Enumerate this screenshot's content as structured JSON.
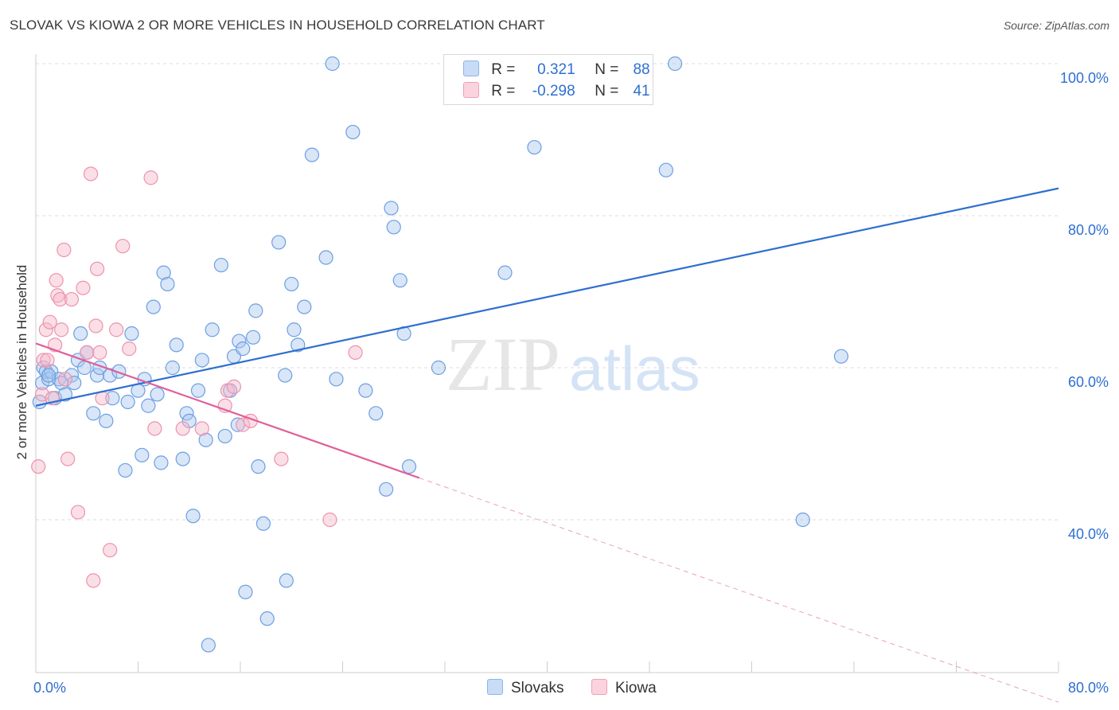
{
  "title": "SLOVAK VS KIOWA 2 OR MORE VEHICLES IN HOUSEHOLD CORRELATION CHART",
  "source": "Source: ZipAtlas.com",
  "watermark": {
    "zip": "ZIP",
    "atlas": "atlas"
  },
  "legend": {
    "rows": [
      {
        "r_label": "R =",
        "r_value": "0.321",
        "n_label": "N =",
        "n_value": "88",
        "color": "#a9c8f0"
      },
      {
        "r_label": "R =",
        "r_value": "-0.298",
        "n_label": "N =",
        "n_value": "41",
        "color": "#f6b8c9"
      }
    ]
  },
  "bottom_legend": [
    {
      "label": "Slovaks",
      "color": "#a9c8f0"
    },
    {
      "label": "Kiowa",
      "color": "#f6b8c9"
    }
  ],
  "chart_data": {
    "type": "scatter",
    "xlabel": "",
    "ylabel": "2 or more Vehicles in Household",
    "xlim": [
      0,
      80
    ],
    "ylim": [
      20,
      102
    ],
    "x_tick_labels": [
      {
        "value": 0,
        "label": "0.0%"
      },
      {
        "value": 80,
        "label": "80.0%"
      }
    ],
    "y_tick_labels": [
      {
        "value": 40,
        "label": "40.0%"
      },
      {
        "value": 60,
        "label": "60.0%"
      },
      {
        "value": 80,
        "label": "80.0%"
      },
      {
        "value": 100,
        "label": "100.0%"
      }
    ],
    "colors": {
      "slovaks": "#2e6fd0",
      "slovaks_fill": "#a9c8f0",
      "kiowa": "#e0609a",
      "kiowa_fill": "#f6b8c9",
      "axis_text": "#2e6fd0"
    },
    "series": [
      {
        "name": "Slovaks",
        "points": [
          [
            0.3,
            55.5
          ],
          [
            0.5,
            58
          ],
          [
            0.6,
            60
          ],
          [
            0.8,
            59.5
          ],
          [
            1.0,
            58.5
          ],
          [
            1.2,
            59.5
          ],
          [
            1.5,
            56
          ],
          [
            1.8,
            58.5
          ],
          [
            2.0,
            58
          ],
          [
            2.3,
            56.5
          ],
          [
            2.8,
            59
          ],
          [
            3.3,
            61
          ],
          [
            3.5,
            64.5
          ],
          [
            3.8,
            60
          ],
          [
            4.0,
            62
          ],
          [
            4.5,
            54
          ],
          [
            4.8,
            59
          ],
          [
            5.0,
            60
          ],
          [
            5.5,
            53
          ],
          [
            5.8,
            59
          ],
          [
            6.0,
            56
          ],
          [
            6.5,
            59.5
          ],
          [
            7.0,
            46.5
          ],
          [
            7.2,
            55.5
          ],
          [
            7.5,
            64.5
          ],
          [
            8.0,
            57
          ],
          [
            8.3,
            48.5
          ],
          [
            8.5,
            58.5
          ],
          [
            8.8,
            55
          ],
          [
            9.2,
            68
          ],
          [
            9.5,
            56.5
          ],
          [
            9.8,
            47.5
          ],
          [
            10.0,
            72.5
          ],
          [
            10.3,
            71
          ],
          [
            10.7,
            60
          ],
          [
            11.0,
            63
          ],
          [
            11.5,
            48
          ],
          [
            11.8,
            54
          ],
          [
            12.0,
            53
          ],
          [
            12.3,
            40.5
          ],
          [
            12.7,
            57
          ],
          [
            13.0,
            61
          ],
          [
            13.3,
            50.5
          ],
          [
            13.5,
            23.5
          ],
          [
            13.8,
            65
          ],
          [
            14.5,
            73.5
          ],
          [
            14.8,
            51
          ],
          [
            15.2,
            57
          ],
          [
            15.5,
            61.5
          ],
          [
            15.8,
            52.5
          ],
          [
            15.9,
            63.5
          ],
          [
            16.2,
            62.5
          ],
          [
            16.4,
            30.5
          ],
          [
            17.0,
            64
          ],
          [
            17.2,
            67.5
          ],
          [
            17.4,
            47
          ],
          [
            17.8,
            39.5
          ],
          [
            18.1,
            27
          ],
          [
            19.0,
            76.5
          ],
          [
            19.5,
            59
          ],
          [
            19.6,
            32
          ],
          [
            20.0,
            71
          ],
          [
            20.2,
            65
          ],
          [
            20.5,
            63
          ],
          [
            21.0,
            68
          ],
          [
            21.6,
            88
          ],
          [
            22.7,
            74.5
          ],
          [
            23.2,
            100
          ],
          [
            23.5,
            58.5
          ],
          [
            24.8,
            91
          ],
          [
            25.8,
            57
          ],
          [
            26.6,
            54
          ],
          [
            27.4,
            44
          ],
          [
            27.8,
            81
          ],
          [
            28.0,
            78.5
          ],
          [
            28.5,
            71.5
          ],
          [
            28.8,
            64.5
          ],
          [
            29.2,
            47
          ],
          [
            31.5,
            60
          ],
          [
            36.7,
            72.5
          ],
          [
            38.0,
            100
          ],
          [
            39.0,
            89
          ],
          [
            49.3,
            86
          ],
          [
            50.0,
            100
          ],
          [
            60.0,
            40
          ],
          [
            63.0,
            61.5
          ],
          [
            1.0,
            59
          ],
          [
            3.0,
            58
          ]
        ]
      },
      {
        "name": "Kiowa",
        "points": [
          [
            0.2,
            47
          ],
          [
            0.5,
            56.5
          ],
          [
            0.6,
            61
          ],
          [
            0.8,
            65
          ],
          [
            0.9,
            61
          ],
          [
            1.1,
            66
          ],
          [
            1.3,
            56
          ],
          [
            1.5,
            63
          ],
          [
            1.6,
            71.5
          ],
          [
            1.7,
            69.5
          ],
          [
            1.9,
            69
          ],
          [
            2.0,
            65
          ],
          [
            2.2,
            75.5
          ],
          [
            2.3,
            58.5
          ],
          [
            2.5,
            48
          ],
          [
            2.8,
            69
          ],
          [
            3.3,
            41
          ],
          [
            3.7,
            70.5
          ],
          [
            4.0,
            62
          ],
          [
            4.3,
            85.5
          ],
          [
            4.5,
            32
          ],
          [
            4.7,
            65.5
          ],
          [
            4.8,
            73
          ],
          [
            5.0,
            62
          ],
          [
            5.2,
            56
          ],
          [
            5.8,
            36
          ],
          [
            6.3,
            65
          ],
          [
            6.8,
            76
          ],
          [
            7.3,
            62.5
          ],
          [
            9.0,
            85
          ],
          [
            9.3,
            52
          ],
          [
            11.5,
            52
          ],
          [
            13.0,
            52
          ],
          [
            14.8,
            55
          ],
          [
            15.0,
            57
          ],
          [
            15.5,
            57.5
          ],
          [
            16.2,
            52.5
          ],
          [
            16.8,
            53
          ],
          [
            19.2,
            48
          ],
          [
            23.0,
            40
          ],
          [
            25.0,
            62
          ]
        ]
      }
    ],
    "trend_lines": [
      {
        "series": "Slovaks",
        "x": [
          0,
          80
        ],
        "y": [
          55.0,
          83.6
        ],
        "style": "solid"
      },
      {
        "series": "Kiowa",
        "x": [
          0,
          30
        ],
        "y": [
          63.2,
          45.5
        ],
        "style": "solid"
      },
      {
        "series": "Kiowa",
        "x": [
          30,
          80
        ],
        "y": [
          45.5,
          16.0
        ],
        "style": "dashed"
      }
    ],
    "grid": true,
    "legend_position": "top-center"
  }
}
